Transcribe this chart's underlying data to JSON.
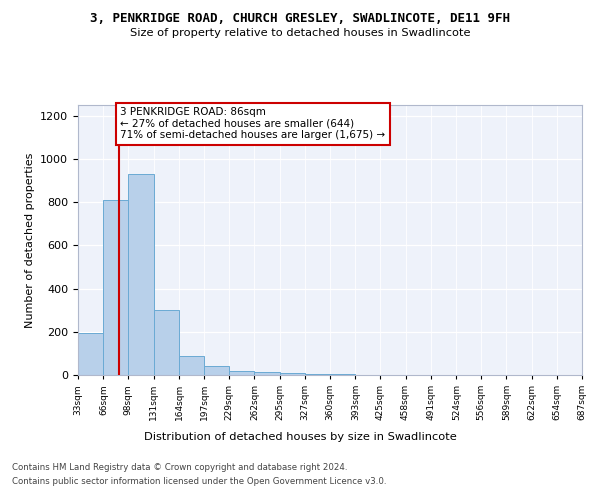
{
  "title": "3, PENKRIDGE ROAD, CHURCH GRESLEY, SWADLINCOTE, DE11 9FH",
  "subtitle": "Size of property relative to detached houses in Swadlincote",
  "xlabel": "Distribution of detached houses by size in Swadlincote",
  "ylabel": "Number of detached properties",
  "bin_edges": [
    33,
    66,
    98,
    131,
    164,
    197,
    229,
    262,
    295,
    327,
    360,
    393,
    425,
    458,
    491,
    524,
    556,
    589,
    622,
    654,
    687
  ],
  "bar_heights": [
    195,
    810,
    930,
    300,
    88,
    40,
    20,
    15,
    10,
    5,
    3,
    2,
    2,
    1,
    1,
    1,
    1,
    1,
    0,
    0
  ],
  "bar_color": "#b8d0ea",
  "bar_edge_color": "#6aaad4",
  "property_size": 86,
  "property_line_color": "#cc0000",
  "annotation_line1": "3 PENKRIDGE ROAD: 86sqm",
  "annotation_line2": "← 27% of detached houses are smaller (644)",
  "annotation_line3": "71% of semi-detached houses are larger (1,675) →",
  "annotation_box_color": "#ffffff",
  "annotation_box_edge_color": "#cc0000",
  "ylim": [
    0,
    1250
  ],
  "yticks": [
    0,
    200,
    400,
    600,
    800,
    1000,
    1200
  ],
  "footer_line1": "Contains HM Land Registry data © Crown copyright and database right 2024.",
  "footer_line2": "Contains public sector information licensed under the Open Government Licence v3.0.",
  "plot_bg_color": "#eef2fa"
}
